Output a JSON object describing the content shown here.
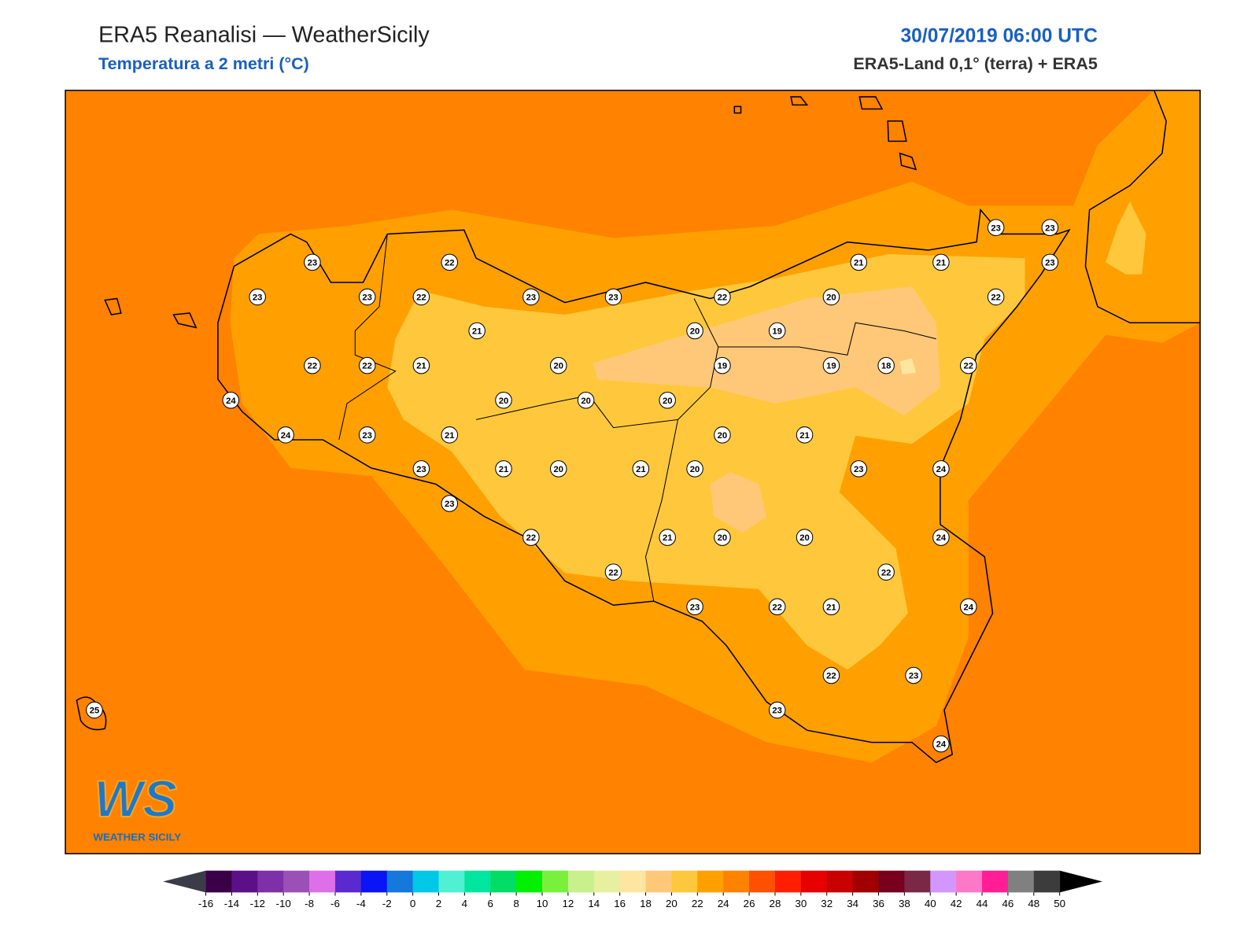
{
  "header": {
    "title": "ERA5 Reanalisi — WeatherSicily",
    "subtitle": "Temperatura a 2 metri (°C)",
    "date": "30/07/2019 06:00 UTC",
    "source": "ERA5-Land 0,1° (terra) + ERA5"
  },
  "logo": {
    "mark": "WS",
    "text": "WEATHER SICILY"
  },
  "stations": {
    "values": [
      23,
      22,
      23,
      23,
      22,
      23,
      23,
      22,
      21,
      21,
      23,
      23,
      23,
      20,
      22,
      21,
      20,
      19,
      22,
      22,
      21,
      20,
      19,
      19,
      18,
      22,
      24,
      20,
      20,
      20,
      24,
      23,
      21,
      20,
      21,
      23,
      21,
      20,
      21,
      20,
      23,
      24,
      23,
      22,
      21,
      20,
      20,
      24,
      22,
      22,
      23,
      22,
      21,
      24,
      22,
      23,
      23,
      25,
      24
    ]
  },
  "colorbar": {
    "ticks": [
      -16,
      -14,
      -12,
      -10,
      -8,
      -6,
      -4,
      -2,
      0,
      2,
      4,
      6,
      8,
      10,
      12,
      14,
      16,
      18,
      20,
      22,
      24,
      26,
      28,
      30,
      32,
      34,
      36,
      38,
      40,
      42,
      44,
      46,
      48,
      50
    ],
    "colors": [
      "#3a0048",
      "#5c1088",
      "#7d30a8",
      "#9b50b8",
      "#dd70e8",
      "#5a2ad0",
      "#0a14f5",
      "#1478dc",
      "#00c8e6",
      "#50f0d2",
      "#00e6a0",
      "#00dc64",
      "#00f000",
      "#78f03c",
      "#c8f08c",
      "#e6f0a0",
      "#ffe6a0",
      "#ffc878",
      "#ffc83c",
      "#ffa000",
      "#ff8200",
      "#ff5000",
      "#ff1e00",
      "#e60000",
      "#c80000",
      "#a00000",
      "#78001e",
      "#7a2846",
      "#d296ff",
      "#ff78c8",
      "#ff1e96",
      "#808080",
      "#3c3c3c"
    ],
    "under": "#3c3c48",
    "over": "#000000"
  }
}
